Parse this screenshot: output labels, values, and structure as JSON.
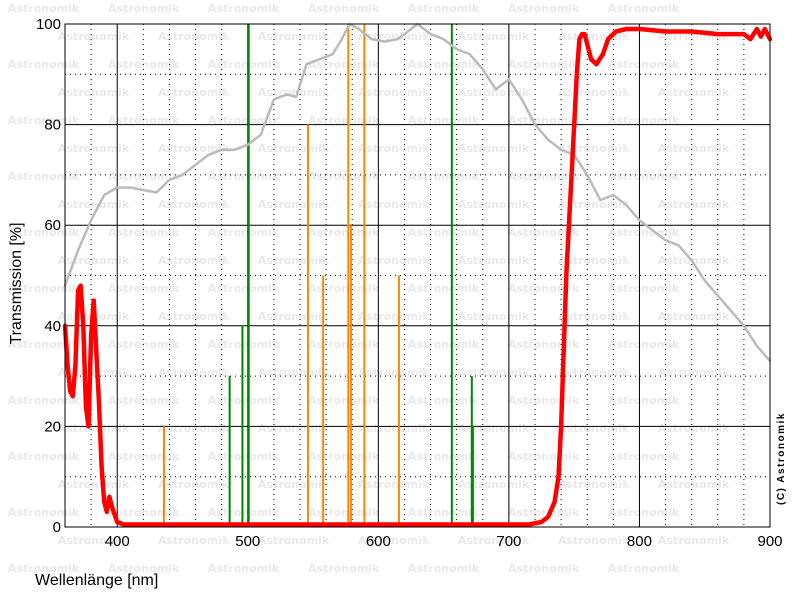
{
  "chart_data": {
    "type": "line",
    "title": "",
    "xlabel": "Wellenlänge [nm]",
    "ylabel": "Transmission [%]",
    "xlim": [
      360,
      900
    ],
    "ylim": [
      0,
      100
    ],
    "xticks": [
      400,
      500,
      600,
      700,
      800,
      900
    ],
    "yticks": [
      0,
      20,
      40,
      60,
      80,
      100
    ],
    "grid": true,
    "watermark": "Astronomik",
    "copyright": "(C) Astronomik",
    "series": [
      {
        "color": "#bbbbbb",
        "points": [
          [
            360,
            48
          ],
          [
            370,
            55
          ],
          [
            380,
            61
          ],
          [
            390,
            66
          ],
          [
            400,
            67.5
          ],
          [
            410,
            67.5
          ],
          [
            420,
            67
          ],
          [
            430,
            66.5
          ],
          [
            440,
            69
          ],
          [
            450,
            70
          ],
          [
            460,
            72
          ],
          [
            470,
            74
          ],
          [
            480,
            75
          ],
          [
            490,
            75
          ],
          [
            500,
            76
          ],
          [
            510,
            78
          ],
          [
            520,
            85
          ],
          [
            530,
            86
          ],
          [
            537,
            85.5
          ],
          [
            545,
            92
          ],
          [
            555,
            93
          ],
          [
            565,
            94
          ],
          [
            572,
            97
          ],
          [
            578,
            100
          ],
          [
            585,
            99
          ],
          [
            595,
            97
          ],
          [
            605,
            96.5
          ],
          [
            615,
            97
          ],
          [
            625,
            99
          ],
          [
            630,
            100
          ],
          [
            640,
            98
          ],
          [
            650,
            97
          ],
          [
            660,
            95
          ],
          [
            670,
            94
          ],
          [
            680,
            91
          ],
          [
            690,
            87
          ],
          [
            700,
            89
          ],
          [
            710,
            85
          ],
          [
            720,
            80
          ],
          [
            730,
            77
          ],
          [
            740,
            75
          ],
          [
            750,
            74
          ],
          [
            760,
            70
          ],
          [
            770,
            65
          ],
          [
            780,
            66
          ],
          [
            790,
            64
          ],
          [
            800,
            61
          ],
          [
            810,
            59
          ],
          [
            820,
            57
          ],
          [
            830,
            56
          ],
          [
            840,
            53
          ],
          [
            850,
            49
          ],
          [
            860,
            46
          ],
          [
            870,
            43
          ],
          [
            880,
            40
          ],
          [
            890,
            36
          ],
          [
            900,
            33
          ]
        ]
      },
      {
        "color": "#ff0000",
        "points": [
          [
            360,
            40
          ],
          [
            362,
            32
          ],
          [
            364,
            27
          ],
          [
            366,
            26
          ],
          [
            368,
            32
          ],
          [
            370,
            47
          ],
          [
            372,
            48
          ],
          [
            374,
            40
          ],
          [
            376,
            24
          ],
          [
            378,
            20
          ],
          [
            380,
            38
          ],
          [
            382,
            45
          ],
          [
            384,
            35
          ],
          [
            386,
            25
          ],
          [
            388,
            12
          ],
          [
            390,
            5
          ],
          [
            392,
            3
          ],
          [
            394,
            6
          ],
          [
            396,
            4
          ],
          [
            400,
            1
          ],
          [
            405,
            0.5
          ],
          [
            450,
            0.5
          ],
          [
            500,
            0.5
          ],
          [
            600,
            0.5
          ],
          [
            700,
            0.5
          ],
          [
            715,
            0.5
          ],
          [
            725,
            1
          ],
          [
            730,
            2
          ],
          [
            735,
            5
          ],
          [
            738,
            10
          ],
          [
            740,
            20
          ],
          [
            742,
            35
          ],
          [
            744,
            50
          ],
          [
            746,
            60
          ],
          [
            748,
            70
          ],
          [
            750,
            80
          ],
          [
            752,
            90
          ],
          [
            754,
            97
          ],
          [
            756,
            98
          ],
          [
            758,
            98
          ],
          [
            760,
            96
          ],
          [
            763,
            93
          ],
          [
            767,
            92
          ],
          [
            772,
            94
          ],
          [
            776,
            97
          ],
          [
            782,
            98.5
          ],
          [
            790,
            99
          ],
          [
            800,
            99
          ],
          [
            820,
            98.5
          ],
          [
            840,
            98.5
          ],
          [
            860,
            98
          ],
          [
            880,
            98
          ],
          [
            885,
            97
          ],
          [
            890,
            99
          ],
          [
            893,
            97.5
          ],
          [
            896,
            99
          ],
          [
            900,
            97
          ]
        ]
      }
    ],
    "spectral_lines": [
      {
        "x": 435.8,
        "y": 20,
        "color": "#ff8800"
      },
      {
        "x": 486.1,
        "y": 30,
        "color": "#008800"
      },
      {
        "x": 495.9,
        "y": 40,
        "color": "#008800"
      },
      {
        "x": 500.7,
        "y": 100,
        "color": "#008800"
      },
      {
        "x": 546.1,
        "y": 80,
        "color": "#ff8800"
      },
      {
        "x": 557.7,
        "y": 50,
        "color": "#ff8800"
      },
      {
        "x": 577.0,
        "y": 100,
        "color": "#ff8800"
      },
      {
        "x": 579.0,
        "y": 60,
        "color": "#ff8800"
      },
      {
        "x": 589.3,
        "y": 100,
        "color": "#ff8800"
      },
      {
        "x": 615.8,
        "y": 50,
        "color": "#ff8800"
      },
      {
        "x": 656.3,
        "y": 100,
        "color": "#008800"
      },
      {
        "x": 671.6,
        "y": 30,
        "color": "#008800"
      },
      {
        "x": 672.4,
        "y": 20,
        "color": "#008800"
      }
    ]
  }
}
